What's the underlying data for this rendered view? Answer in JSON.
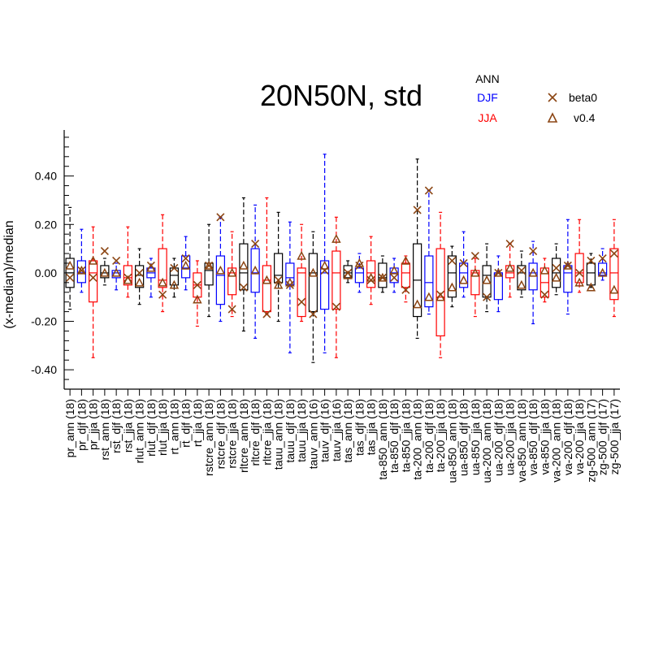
{
  "chart_data": {
    "type": "boxplot",
    "title": "20N50N, std",
    "ylabel": "(x-median)/median",
    "xlabel": "",
    "ylim": [
      -0.48,
      0.59
    ],
    "yticks": [
      -0.4,
      -0.2,
      0.0,
      0.2,
      0.4
    ],
    "ytick_labels": [
      "-0.40",
      "-0.20",
      "0.00",
      "0.20",
      "0.40"
    ],
    "legend": {
      "season_labels": [
        "ANN",
        "DJF",
        "JJA"
      ],
      "marker_labels": [
        "beta0",
        "v0.4"
      ]
    },
    "colors": {
      "ann": "#000000",
      "djf": "#0000ff",
      "jja": "#ff0000",
      "markers": "#8b4513"
    },
    "categories": [
      {
        "label": "pr_ann (18)",
        "season": "ann",
        "whislo": -0.15,
        "q1": -0.06,
        "med": 0.0,
        "q3": 0.06,
        "whishi": 0.27,
        "beta0": -0.02,
        "v04": 0.03
      },
      {
        "label": "pr_djf (18)",
        "season": "djf",
        "whislo": -0.08,
        "q1": -0.04,
        "med": 0.0,
        "q3": 0.05,
        "whishi": 0.18,
        "beta0": 0.01,
        "v04": 0.01
      },
      {
        "label": "pr_jja (18)",
        "season": "jja",
        "whislo": -0.35,
        "q1": -0.12,
        "med": 0.0,
        "q3": 0.05,
        "whishi": 0.19,
        "beta0": -0.02,
        "v04": 0.05
      },
      {
        "label": "rst_ann (18)",
        "season": "ann",
        "whislo": -0.05,
        "q1": -0.02,
        "med": 0.0,
        "q3": 0.03,
        "whishi": 0.06,
        "beta0": 0.09,
        "v04": 0.0
      },
      {
        "label": "rst_djf (18)",
        "season": "djf",
        "whislo": -0.07,
        "q1": -0.02,
        "med": 0.0,
        "q3": 0.01,
        "whishi": 0.04,
        "beta0": 0.05,
        "v04": 0.0
      },
      {
        "label": "rst_jja (18)",
        "season": "jja",
        "whislo": -0.1,
        "q1": -0.05,
        "med": -0.02,
        "q3": 0.03,
        "whishi": 0.19,
        "beta0": -0.02,
        "v04": -0.03
      },
      {
        "label": "rlut_ann (18)",
        "season": "ann",
        "whislo": -0.13,
        "q1": -0.06,
        "med": -0.01,
        "q3": 0.03,
        "whishi": 0.1,
        "beta0": 0.0,
        "v04": -0.04
      },
      {
        "label": "rlut_djf (18)",
        "season": "djf",
        "whislo": -0.1,
        "q1": -0.02,
        "med": 0.0,
        "q3": 0.02,
        "whishi": 0.06,
        "beta0": 0.03,
        "v04": 0.02
      },
      {
        "label": "rlut_jja (18)",
        "season": "jja",
        "whislo": -0.16,
        "q1": -0.06,
        "med": -0.03,
        "q3": 0.1,
        "whishi": 0.24,
        "beta0": -0.09,
        "v04": -0.04
      },
      {
        "label": "rt_ann (18)",
        "season": "ann",
        "whislo": -0.1,
        "q1": -0.05,
        "med": -0.01,
        "q3": 0.02,
        "whishi": 0.06,
        "beta0": 0.02,
        "v04": -0.05
      },
      {
        "label": "rt_djf (18)",
        "season": "djf",
        "whislo": -0.07,
        "q1": -0.02,
        "med": 0.02,
        "q3": 0.07,
        "whishi": 0.15,
        "beta0": 0.06,
        "v04": 0.03
      },
      {
        "label": "rt_jja (18)",
        "season": "jja",
        "whislo": -0.22,
        "q1": -0.1,
        "med": -0.05,
        "q3": 0.0,
        "whishi": 0.05,
        "beta0": -0.05,
        "v04": -0.11
      },
      {
        "label": "rstcre_ann (18)",
        "season": "ann",
        "whislo": -0.18,
        "q1": -0.05,
        "med": 0.01,
        "q3": 0.04,
        "whishi": 0.2,
        "beta0": 0.03,
        "v04": 0.03
      },
      {
        "label": "rstcre_djf (18)",
        "season": "djf",
        "whislo": -0.2,
        "q1": -0.13,
        "med": -0.01,
        "q3": 0.07,
        "whishi": 0.23,
        "beta0": 0.23,
        "v04": 0.01
      },
      {
        "label": "rstcre_jja (18)",
        "season": "jja",
        "whislo": -0.18,
        "q1": -0.09,
        "med": 0.0,
        "q3": 0.02,
        "whishi": 0.17,
        "beta0": -0.15,
        "v04": 0.0
      },
      {
        "label": "rltcre_ann (18)",
        "season": "ann",
        "whislo": -0.24,
        "q1": -0.07,
        "med": 0.0,
        "q3": 0.12,
        "whishi": 0.31,
        "beta0": -0.06,
        "v04": 0.03
      },
      {
        "label": "rltcre_djf (18)",
        "season": "djf",
        "whislo": -0.27,
        "q1": -0.08,
        "med": 0.0,
        "q3": 0.1,
        "whishi": 0.28,
        "beta0": 0.12,
        "v04": 0.01
      },
      {
        "label": "rltcre_jja (18)",
        "season": "jja",
        "whislo": -0.17,
        "q1": -0.16,
        "med": -0.03,
        "q3": 0.03,
        "whishi": 0.31,
        "beta0": -0.17,
        "v04": -0.03
      },
      {
        "label": "tauu_ann (18)",
        "season": "ann",
        "whislo": -0.2,
        "q1": -0.04,
        "med": -0.01,
        "q3": 0.08,
        "whishi": 0.25,
        "beta0": -0.03,
        "v04": -0.05
      },
      {
        "label": "tauu_djf (18)",
        "season": "djf",
        "whislo": -0.33,
        "q1": -0.05,
        "med": -0.02,
        "q3": 0.04,
        "whishi": 0.21,
        "beta0": -0.05,
        "v04": -0.04
      },
      {
        "label": "tauu_jja (18)",
        "season": "jja",
        "whislo": -0.2,
        "q1": -0.18,
        "med": 0.0,
        "q3": 0.02,
        "whishi": 0.2,
        "beta0": -0.12,
        "v04": 0.07
      },
      {
        "label": "tauv_ann (16)",
        "season": "ann",
        "whislo": -0.37,
        "q1": -0.16,
        "med": 0.0,
        "q3": 0.08,
        "whishi": 0.17,
        "beta0": -0.17,
        "v04": 0.0
      },
      {
        "label": "tauv_djf (16)",
        "season": "djf",
        "whislo": -0.33,
        "q1": -0.15,
        "med": 0.0,
        "q3": 0.05,
        "whishi": 0.49,
        "beta0": 0.01,
        "v04": 0.03
      },
      {
        "label": "tauv_jja (16)",
        "season": "jja",
        "whislo": -0.35,
        "q1": -0.15,
        "med": 0.0,
        "q3": 0.09,
        "whishi": 0.23,
        "beta0": -0.14,
        "v04": 0.14
      },
      {
        "label": "tas_ann (18)",
        "season": "ann",
        "whislo": -0.04,
        "q1": -0.02,
        "med": 0.0,
        "q3": 0.03,
        "whishi": 0.05,
        "beta0": 0.0,
        "v04": -0.01
      },
      {
        "label": "tas_djf (18)",
        "season": "djf",
        "whislo": -0.08,
        "q1": -0.04,
        "med": 0.0,
        "q3": 0.02,
        "whishi": 0.08,
        "beta0": 0.03,
        "v04": 0.04
      },
      {
        "label": "tas_jja (18)",
        "season": "jja",
        "whislo": -0.13,
        "q1": -0.06,
        "med": 0.0,
        "q3": 0.05,
        "whishi": 0.15,
        "beta0": -0.03,
        "v04": -0.02
      },
      {
        "label": "ta-850_ann (18)",
        "season": "ann",
        "whislo": -0.08,
        "q1": -0.06,
        "med": -0.02,
        "q3": 0.04,
        "whishi": 0.07,
        "beta0": -0.02,
        "v04": -0.02
      },
      {
        "label": "ta-850_djf (18)",
        "season": "djf",
        "whislo": -0.08,
        "q1": -0.04,
        "med": 0.0,
        "q3": 0.02,
        "whishi": 0.06,
        "beta0": -0.02,
        "v04": 0.01
      },
      {
        "label": "ta-850_jja (18)",
        "season": "jja",
        "whislo": -0.12,
        "q1": -0.06,
        "med": 0.0,
        "q3": 0.04,
        "whishi": 0.07,
        "beta0": -0.07,
        "v04": 0.05
      },
      {
        "label": "ta-200_ann (18)",
        "season": "ann",
        "whislo": -0.27,
        "q1": -0.18,
        "med": -0.03,
        "q3": 0.12,
        "whishi": 0.47,
        "beta0": 0.26,
        "v04": -0.13
      },
      {
        "label": "ta-200_djf (18)",
        "season": "djf",
        "whislo": -0.17,
        "q1": -0.14,
        "med": -0.04,
        "q3": 0.07,
        "whishi": 0.34,
        "beta0": 0.34,
        "v04": -0.1
      },
      {
        "label": "ta-200_jja (18)",
        "season": "jja",
        "whislo": -0.35,
        "q1": -0.26,
        "med": -0.1,
        "q3": 0.1,
        "whishi": 0.25,
        "beta0": -0.09,
        "v04": -0.1
      },
      {
        "label": "ua-850_ann (18)",
        "season": "ann",
        "whislo": -0.14,
        "q1": -0.1,
        "med": 0.0,
        "q3": 0.07,
        "whishi": 0.11,
        "beta0": 0.05,
        "v04": -0.06
      },
      {
        "label": "ua-850_djf (18)",
        "season": "djf",
        "whislo": -0.1,
        "q1": -0.06,
        "med": 0.0,
        "q3": 0.04,
        "whishi": 0.17,
        "beta0": 0.04,
        "v04": -0.03
      },
      {
        "label": "ua-850_jja (18)",
        "season": "jja",
        "whislo": -0.18,
        "q1": -0.09,
        "med": 0.0,
        "q3": 0.01,
        "whishi": 0.06,
        "beta0": 0.07,
        "v04": 0.0
      },
      {
        "label": "ua-200_ann (18)",
        "season": "ann",
        "whislo": -0.16,
        "q1": -0.1,
        "med": -0.01,
        "q3": 0.03,
        "whishi": 0.12,
        "beta0": -0.1,
        "v04": -0.03
      },
      {
        "label": "ua-200_djf (18)",
        "season": "djf",
        "whislo": -0.16,
        "q1": -0.11,
        "med": 0.0,
        "q3": 0.0,
        "whishi": 0.07,
        "beta0": 0.0,
        "v04": 0.0
      },
      {
        "label": "ua-200_jja (18)",
        "season": "jja",
        "whislo": -0.1,
        "q1": -0.02,
        "med": 0.0,
        "q3": 0.03,
        "whishi": 0.12,
        "beta0": 0.12,
        "v04": 0.02
      },
      {
        "label": "va-850_ann (18)",
        "season": "ann",
        "whislo": -0.1,
        "q1": -0.07,
        "med": 0.0,
        "q3": 0.03,
        "whishi": 0.09,
        "beta0": 0.01,
        "v04": -0.05
      },
      {
        "label": "va-850_djf (18)",
        "season": "djf",
        "whislo": -0.21,
        "q1": -0.07,
        "med": 0.0,
        "q3": 0.04,
        "whishi": 0.13,
        "beta0": 0.09,
        "v04": 0.0
      },
      {
        "label": "va-850_jja (18)",
        "season": "jja",
        "whislo": -0.12,
        "q1": -0.1,
        "med": -0.04,
        "q3": 0.02,
        "whishi": 0.06,
        "beta0": -0.09,
        "v04": 0.01
      },
      {
        "label": "va-200_ann (18)",
        "season": "ann",
        "whislo": -0.09,
        "q1": -0.06,
        "med": 0.0,
        "q3": 0.06,
        "whishi": 0.12,
        "beta0": 0.02,
        "v04": -0.02
      },
      {
        "label": "va-200_djf (18)",
        "season": "djf",
        "whislo": -0.17,
        "q1": -0.08,
        "med": 0.0,
        "q3": 0.03,
        "whishi": 0.22,
        "beta0": 0.03,
        "v04": 0.03
      },
      {
        "label": "va-200_jja (18)",
        "season": "jja",
        "whislo": -0.08,
        "q1": -0.04,
        "med": 0.0,
        "q3": 0.08,
        "whishi": 0.22,
        "beta0": 0.0,
        "v04": -0.04
      },
      {
        "label": "zg-500_ann (17)",
        "season": "ann",
        "whislo": -0.06,
        "q1": -0.05,
        "med": 0.0,
        "q3": 0.04,
        "whishi": 0.08,
        "beta0": 0.05,
        "v04": -0.06
      },
      {
        "label": "zg-500_djf (17)",
        "season": "djf",
        "whislo": -0.03,
        "q1": -0.01,
        "med": 0.0,
        "q3": 0.04,
        "whishi": 0.1,
        "beta0": 0.06,
        "v04": 0.0
      },
      {
        "label": "zg-500_jja (17)",
        "season": "jja",
        "whislo": -0.18,
        "q1": -0.11,
        "med": 0.0,
        "q3": 0.1,
        "whishi": 0.22,
        "beta0": 0.08,
        "v04": -0.07
      }
    ]
  }
}
